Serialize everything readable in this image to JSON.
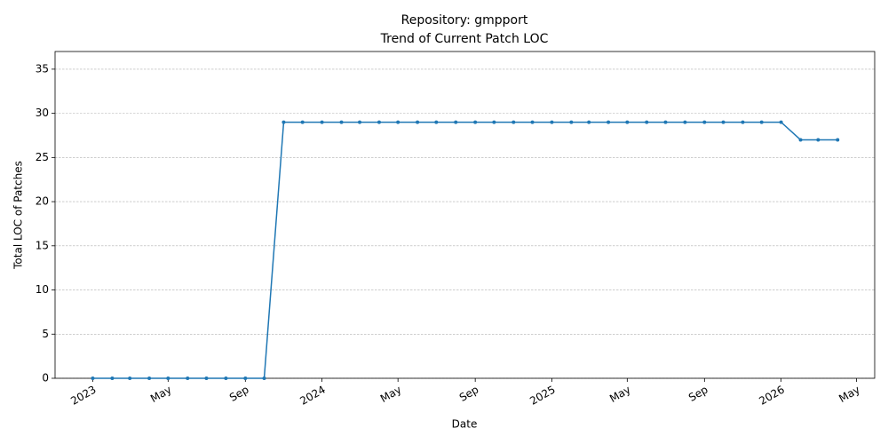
{
  "chart_data": {
    "type": "line",
    "title": "Repository: gmpport",
    "subtitle": "Trend of Current Patch LOC",
    "x_label": "Date",
    "y_label": "Total LOC of Patches",
    "x": [
      "2023-01",
      "2023-02",
      "2023-03",
      "2023-04",
      "2023-05",
      "2023-06",
      "2023-07",
      "2023-08",
      "2023-09",
      "2023-10",
      "2023-11",
      "2023-12",
      "2024-01",
      "2024-02",
      "2024-03",
      "2024-04",
      "2024-05",
      "2024-06",
      "2024-07",
      "2024-08",
      "2024-09",
      "2024-10",
      "2024-11",
      "2024-12",
      "2025-01",
      "2025-02",
      "2025-03",
      "2025-04",
      "2025-05",
      "2025-06",
      "2025-07",
      "2025-08",
      "2025-09",
      "2025-10",
      "2025-11",
      "2025-12",
      "2026-01",
      "2026-02",
      "2026-03",
      "2026-04"
    ],
    "values": [
      0,
      0,
      0,
      0,
      0,
      0,
      0,
      0,
      0,
      0,
      29,
      29,
      29,
      29,
      29,
      29,
      29,
      29,
      29,
      29,
      29,
      29,
      29,
      29,
      29,
      29,
      29,
      29,
      29,
      29,
      29,
      29,
      29,
      29,
      29,
      29,
      29,
      27,
      27,
      27
    ],
    "color": "#1f77b4",
    "xlim": [
      "2022-11-02",
      "2026-05-30"
    ],
    "xticks": [
      {
        "value": "2023-01-01",
        "label": "2023"
      },
      {
        "value": "2023-05-01",
        "label": "May"
      },
      {
        "value": "2023-09-01",
        "label": "Sep"
      },
      {
        "value": "2024-01-01",
        "label": "2024"
      },
      {
        "value": "2024-05-01",
        "label": "May"
      },
      {
        "value": "2024-09-01",
        "label": "Sep"
      },
      {
        "value": "2025-01-01",
        "label": "2025"
      },
      {
        "value": "2025-05-01",
        "label": "May"
      },
      {
        "value": "2025-09-01",
        "label": "Sep"
      },
      {
        "value": "2026-01-01",
        "label": "2026"
      },
      {
        "value": "2026-05-01",
        "label": "May"
      }
    ],
    "ylim": [
      0,
      37
    ],
    "yticks": [
      0,
      5,
      10,
      15,
      20,
      25,
      30,
      35
    ],
    "grid": true
  }
}
